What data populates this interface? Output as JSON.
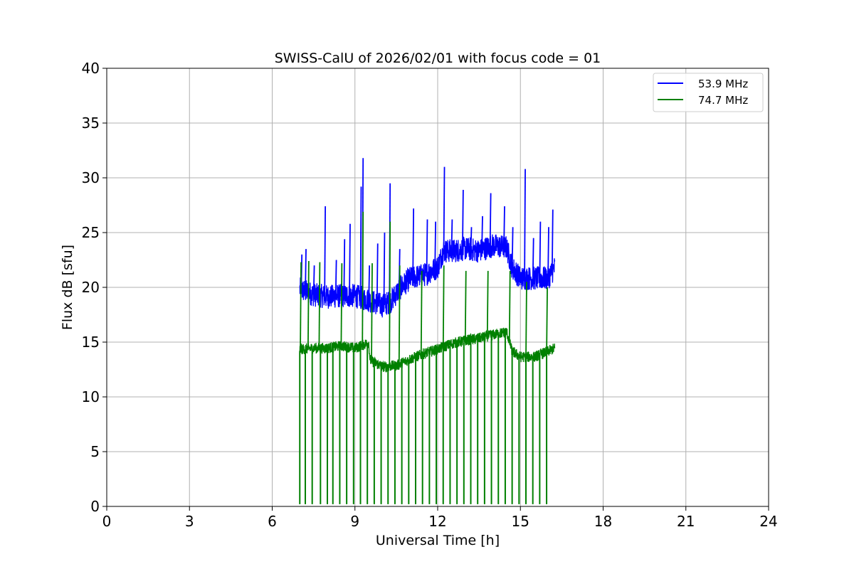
{
  "chart_data": {
    "type": "line",
    "title": "SWISS-CalU of 2026/02/01 with focus code = 01",
    "xlabel": "Universal Time [h]",
    "ylabel": "Flux dB [sfu]",
    "xlim": [
      0,
      24
    ],
    "ylim": [
      0,
      40
    ],
    "xticks": [
      0,
      3,
      6,
      9,
      12,
      15,
      18,
      21,
      24
    ],
    "yticks": [
      0,
      5,
      10,
      15,
      20,
      25,
      30,
      35,
      40
    ],
    "grid": true,
    "legend_position": "top-right",
    "series": [
      {
        "name": "53.9 MHz",
        "color": "#0000ff",
        "baseline": [
          [
            7.0,
            19.5
          ],
          [
            7.5,
            19.0
          ],
          [
            8.0,
            18.8
          ],
          [
            8.5,
            18.9
          ],
          [
            9.0,
            18.9
          ],
          [
            9.5,
            18.5
          ],
          [
            10.0,
            18.0
          ],
          [
            10.3,
            18.4
          ],
          [
            10.6,
            19.5
          ],
          [
            11.0,
            20.5
          ],
          [
            11.5,
            20.8
          ],
          [
            12.0,
            21.5
          ],
          [
            12.2,
            23.0
          ],
          [
            12.6,
            23.0
          ],
          [
            13.0,
            23.2
          ],
          [
            13.5,
            23.0
          ],
          [
            14.0,
            23.5
          ],
          [
            14.5,
            23.3
          ],
          [
            14.7,
            21.5
          ],
          [
            15.0,
            20.5
          ],
          [
            15.5,
            20.5
          ],
          [
            16.0,
            20.5
          ],
          [
            16.25,
            21.5
          ]
        ],
        "peaks": [
          [
            7.05,
            23.0
          ],
          [
            7.2,
            23.5
          ],
          [
            7.5,
            22.0
          ],
          [
            7.9,
            27.4
          ],
          [
            8.3,
            22.5
          ],
          [
            8.6,
            24.4
          ],
          [
            8.8,
            25.8
          ],
          [
            9.2,
            29.2
          ],
          [
            9.27,
            31.8
          ],
          [
            9.5,
            22.0
          ],
          [
            9.8,
            24.0
          ],
          [
            10.05,
            25.0
          ],
          [
            10.25,
            29.5
          ],
          [
            10.6,
            23.5
          ],
          [
            11.1,
            27.2
          ],
          [
            11.6,
            26.2
          ],
          [
            11.9,
            26.0
          ],
          [
            12.22,
            31.0
          ],
          [
            12.5,
            26.2
          ],
          [
            12.9,
            28.9
          ],
          [
            13.2,
            25.5
          ],
          [
            13.6,
            26.5
          ],
          [
            13.9,
            28.6
          ],
          [
            14.4,
            27.4
          ],
          [
            14.7,
            25.5
          ],
          [
            15.15,
            30.8
          ],
          [
            15.45,
            24.5
          ],
          [
            15.7,
            26.0
          ],
          [
            16.0,
            25.5
          ],
          [
            16.15,
            27.1
          ]
        ],
        "noise_amplitude": 2.2
      },
      {
        "name": "74.7 MHz",
        "color": "#008000",
        "baseline": [
          [
            7.0,
            14.2
          ],
          [
            7.5,
            14.3
          ],
          [
            8.0,
            14.3
          ],
          [
            8.5,
            14.5
          ],
          [
            9.0,
            14.3
          ],
          [
            9.5,
            14.8
          ],
          [
            9.55,
            13.2
          ],
          [
            10.0,
            12.6
          ],
          [
            10.5,
            12.7
          ],
          [
            11.0,
            13.3
          ],
          [
            11.5,
            13.8
          ],
          [
            12.0,
            14.2
          ],
          [
            12.5,
            14.7
          ],
          [
            13.0,
            15.0
          ],
          [
            13.5,
            15.2
          ],
          [
            14.0,
            15.5
          ],
          [
            14.5,
            15.8
          ],
          [
            14.7,
            14.0
          ],
          [
            15.0,
            13.5
          ],
          [
            15.5,
            13.5
          ],
          [
            16.0,
            14.0
          ],
          [
            16.25,
            14.3
          ]
        ],
        "peaks": [
          [
            7.02,
            22.3
          ],
          [
            7.3,
            22.4
          ],
          [
            7.7,
            22.3
          ],
          [
            8.5,
            22.2
          ],
          [
            9.27,
            26.9
          ],
          [
            9.6,
            22.2
          ],
          [
            10.25,
            26.0
          ],
          [
            10.6,
            22.0
          ],
          [
            11.4,
            21.5
          ],
          [
            12.2,
            22.0
          ],
          [
            13.0,
            21.5
          ],
          [
            13.8,
            21.5
          ],
          [
            14.6,
            21.5
          ],
          [
            15.2,
            20.5
          ],
          [
            15.95,
            20.0
          ]
        ],
        "dropouts": [
          7.0,
          7.2,
          7.45,
          7.75,
          8.0,
          8.2,
          8.45,
          8.7,
          8.95,
          9.2,
          9.45,
          9.7,
          9.95,
          10.2,
          10.45,
          10.7,
          10.95,
          11.2,
          11.45,
          11.7,
          11.95,
          12.2,
          12.45,
          12.7,
          12.95,
          13.2,
          13.45,
          13.7,
          13.95,
          14.2,
          14.45,
          14.7,
          14.95,
          15.2,
          15.45,
          15.7,
          15.95
        ],
        "dropout_level": 0.2,
        "noise_amplitude": 1.0
      }
    ]
  }
}
